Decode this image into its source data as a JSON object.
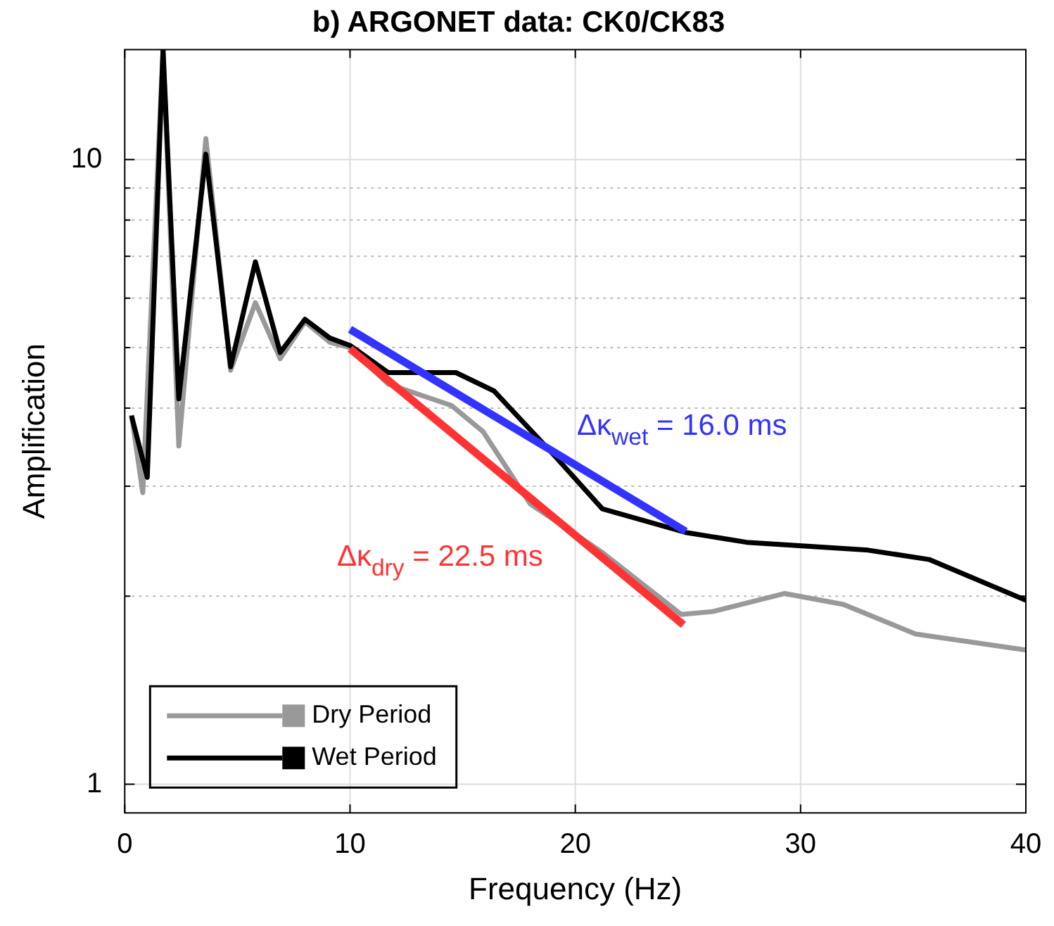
{
  "chart_data": {
    "type": "line",
    "title": "b) ARGONET data: CK0/CK83",
    "xlabel": "Frequency (Hz)",
    "ylabel": "Amplification",
    "log": "y",
    "grid": true,
    "legend": "bottom left",
    "marker": "none",
    "line_style": "solid",
    "xlim": [
      0,
      40
    ],
    "xticks": [
      0,
      10,
      20,
      30,
      40
    ],
    "ylim": [
      0.9,
      15
    ],
    "yticks": [
      1,
      {
        "value": 2,
        "label": null
      },
      {
        "value": 3,
        "label": null
      },
      {
        "value": 4,
        "label": null
      },
      {
        "value": 5,
        "label": null
      },
      {
        "value": 6,
        "label": null
      },
      {
        "value": 7,
        "label": null
      },
      {
        "value": 8,
        "label": null
      },
      {
        "value": 9,
        "label": null
      },
      10
    ],
    "series": [
      {
        "name": "Dry Period",
        "color": "#999999",
        "x": [
          0.3,
          0.8,
          1.7,
          2.4,
          3.6,
          4.7,
          5.8,
          6.9,
          8.0,
          9.1,
          10,
          11.7,
          14.5,
          15.9,
          18.0,
          21.2,
          24.7,
          26.1,
          29.3,
          31.9,
          35.1,
          40
        ],
        "values": [
          3.9,
          2.93,
          15,
          3.48,
          10.8,
          4.6,
          5.9,
          4.8,
          5.5,
          5.1,
          5.0,
          4.37,
          4.04,
          3.67,
          2.81,
          2.35,
          1.87,
          1.89,
          2.02,
          1.94,
          1.74,
          1.64
        ]
      },
      {
        "name": "Wet Period",
        "color": "#000000",
        "x": [
          0.3,
          1.0,
          1.7,
          2.4,
          3.6,
          4.7,
          5.8,
          6.9,
          8.0,
          9.1,
          10,
          11.7,
          14.7,
          16.4,
          19.1,
          21.2,
          24.9,
          27.6,
          33,
          35.7,
          40
        ],
        "values": [
          3.89,
          3.1,
          15,
          4.14,
          10.2,
          4.66,
          6.86,
          4.91,
          5.55,
          5.18,
          5.04,
          4.56,
          4.56,
          4.26,
          3.35,
          2.76,
          2.53,
          2.44,
          2.37,
          2.29,
          1.97
        ]
      },
      {
        "color": "#ff3333",
        "x": [
          10,
          24.8
        ],
        "values": [
          4.98,
          1.8
        ]
      },
      {
        "color": "#3333ff",
        "x": [
          10,
          24.9
        ],
        "values": [
          5.35,
          2.54
        ]
      }
    ],
    "annotations": [
      "Δκ$_{dry}$ = 22.5 ms",
      "Δκ$_{wet}$ = 16.0 ms"
    ]
  }
}
